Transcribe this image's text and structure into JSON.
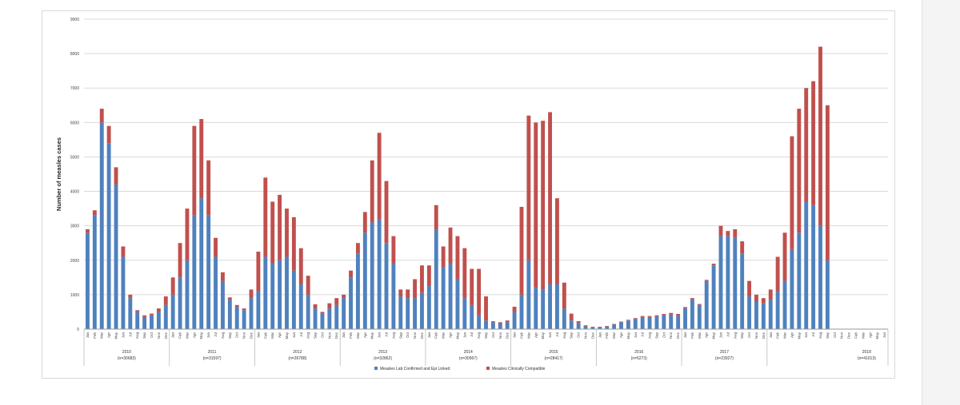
{
  "chart_data": {
    "type": "bar",
    "stacked": true,
    "ylabel": "Number of measles cases",
    "ylim": [
      0,
      9000
    ],
    "yticks": [
      0,
      1000,
      2000,
      3000,
      4000,
      5000,
      6000,
      7000,
      8000,
      9000
    ],
    "grid": true,
    "legend_position": "bottom",
    "months": [
      "Jan",
      "Feb",
      "Mar",
      "Apr",
      "May",
      "Jun",
      "Jul",
      "Aug",
      "Sep",
      "Oct",
      "Nov",
      "Dec"
    ],
    "years": [
      {
        "year": "2010",
        "n": "(n=30683)"
      },
      {
        "year": "2011",
        "n": "(n=31597)"
      },
      {
        "year": "2012",
        "n": "(n=26788)"
      },
      {
        "year": "2013",
        "n": "(n=32862)"
      },
      {
        "year": "2014",
        "n": "(n=30967)"
      },
      {
        "year": "2015",
        "n": "(n=28417)"
      },
      {
        "year": "2016",
        "n": "(n=5273)"
      },
      {
        "year": "2017",
        "n": "(n=23927)"
      },
      {
        "year": "2018",
        "n": "(n=41013)"
      }
    ],
    "colors": {
      "confirmed": "#4f81bd",
      "compatible": "#c0504d"
    },
    "series": [
      {
        "name": "Measles Lab Confirmed and Epi Linked",
        "values": [
          2800,
          3300,
          6000,
          5400,
          4200,
          2100,
          900,
          500,
          350,
          400,
          500,
          700,
          1000,
          1500,
          2000,
          3300,
          3800,
          3300,
          2100,
          1400,
          850,
          650,
          550,
          900,
          1100,
          2100,
          1900,
          2000,
          2100,
          1700,
          1300,
          1000,
          600,
          450,
          600,
          700,
          900,
          1500,
          2200,
          2800,
          3100,
          3200,
          2500,
          1900,
          950,
          900,
          900,
          1050,
          1250,
          2900,
          1800,
          1900,
          1450,
          900,
          700,
          400,
          250,
          200,
          150,
          200,
          500,
          1000,
          2000,
          1200,
          1150,
          1300,
          1300,
          600,
          250,
          180,
          80,
          50,
          60,
          80,
          130,
          200,
          250,
          300,
          350,
          350,
          370,
          400,
          420,
          380,
          600,
          850,
          700,
          1400,
          1850,
          2700,
          2700,
          2650,
          2200,
          950,
          800,
          750,
          850,
          1100,
          1400,
          2300,
          2800,
          3700,
          3600,
          3000,
          2000
        ],
        "extra_months": [
          "Feb",
          "Mar",
          "Apr",
          "May",
          "Jun"
        ]
      },
      {
        "name": "Measles Clinically Compatible",
        "values": [
          100,
          150,
          400,
          500,
          500,
          300,
          100,
          50,
          50,
          50,
          100,
          250,
          500,
          1000,
          1500,
          2600,
          2300,
          1600,
          550,
          250,
          70,
          50,
          50,
          250,
          1150,
          2300,
          1800,
          1900,
          1400,
          1550,
          1050,
          550,
          120,
          50,
          150,
          200,
          100,
          200,
          300,
          600,
          1800,
          2500,
          1800,
          800,
          200,
          250,
          550,
          800,
          600,
          700,
          600,
          1050,
          1250,
          1450,
          1050,
          1350,
          700,
          30,
          50,
          50,
          150,
          2550,
          4200,
          4800,
          4900,
          5000,
          2500,
          750,
          200,
          50,
          30,
          20,
          10,
          10,
          20,
          20,
          20,
          20,
          30,
          30,
          30,
          40,
          50,
          60,
          40,
          50,
          30,
          30,
          50,
          300,
          150,
          250,
          350,
          450,
          200,
          150,
          300,
          1000,
          1400,
          3300,
          3600,
          3300,
          3600,
          5200,
          4500
        ],
        "extra_months": [
          "Feb",
          "Mar",
          "Apr",
          "May",
          "Jun"
        ]
      }
    ]
  }
}
